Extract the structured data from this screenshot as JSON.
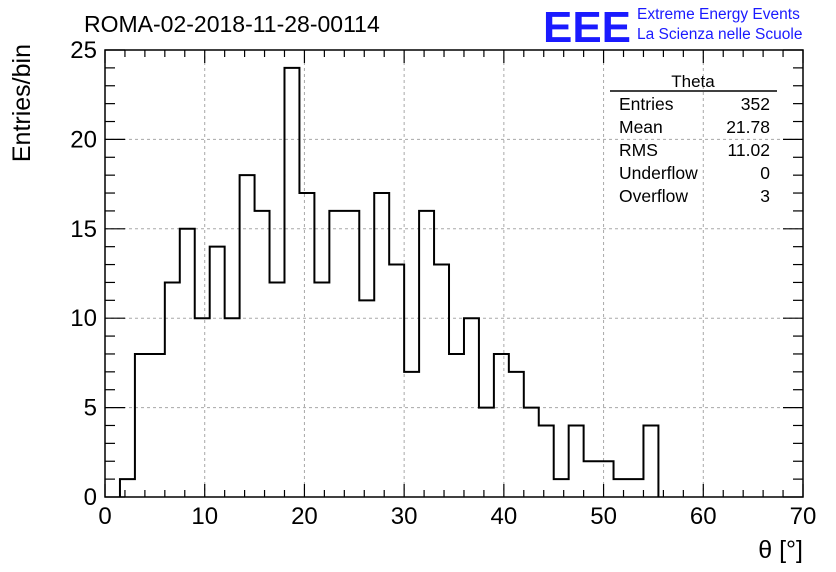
{
  "header": {
    "run_title": "ROMA-02-2018-11-28-00114",
    "logo_text": "EEE",
    "logo_line1": "Extreme Energy Events",
    "logo_line2": "La Scienza nelle Scuole"
  },
  "stats_box": {
    "title": "Theta",
    "rows": [
      {
        "label": "Entries",
        "value": "352"
      },
      {
        "label": "Mean",
        "value": "21.78"
      },
      {
        "label": "RMS",
        "value": "11.02"
      },
      {
        "label": "Underflow",
        "value": "0"
      },
      {
        "label": "Overflow",
        "value": "3"
      }
    ]
  },
  "chart_data": {
    "type": "bar",
    "subtype": "step-histogram",
    "title": "ROMA-02-2018-11-28-00114",
    "xlabel": "θ [°]",
    "ylabel": "Entries/bin",
    "xlim": [
      0,
      70
    ],
    "ylim": [
      0,
      25
    ],
    "xticks": [
      0,
      10,
      20,
      30,
      40,
      50,
      60,
      70
    ],
    "yticks": [
      0,
      5,
      10,
      15,
      20,
      25
    ],
    "grid": true,
    "bin_width": 1.5,
    "bin_edges_start": 1.5,
    "values": [
      1,
      8,
      8,
      12,
      15,
      10,
      14,
      10,
      18,
      16,
      12,
      24,
      17,
      12,
      16,
      16,
      11,
      17,
      13,
      7,
      16,
      13,
      8,
      10,
      5,
      8,
      7,
      5,
      4,
      1,
      4,
      2,
      2,
      1,
      1,
      4
    ],
    "line_color": "#000000"
  }
}
